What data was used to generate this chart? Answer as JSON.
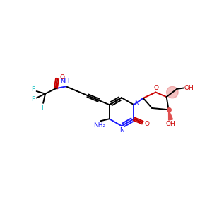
{
  "background": "#ffffff",
  "figsize": [
    3.0,
    3.0
  ],
  "dpi": 100,
  "colors": {
    "carbon": "#000000",
    "nitrogen": "#1a1aff",
    "oxygen": "#cc0000",
    "fluorine": "#00bbbb",
    "ribose_pink": "#e05050"
  },
  "xlim": [
    0,
    10
  ],
  "ylim": [
    0,
    10
  ]
}
